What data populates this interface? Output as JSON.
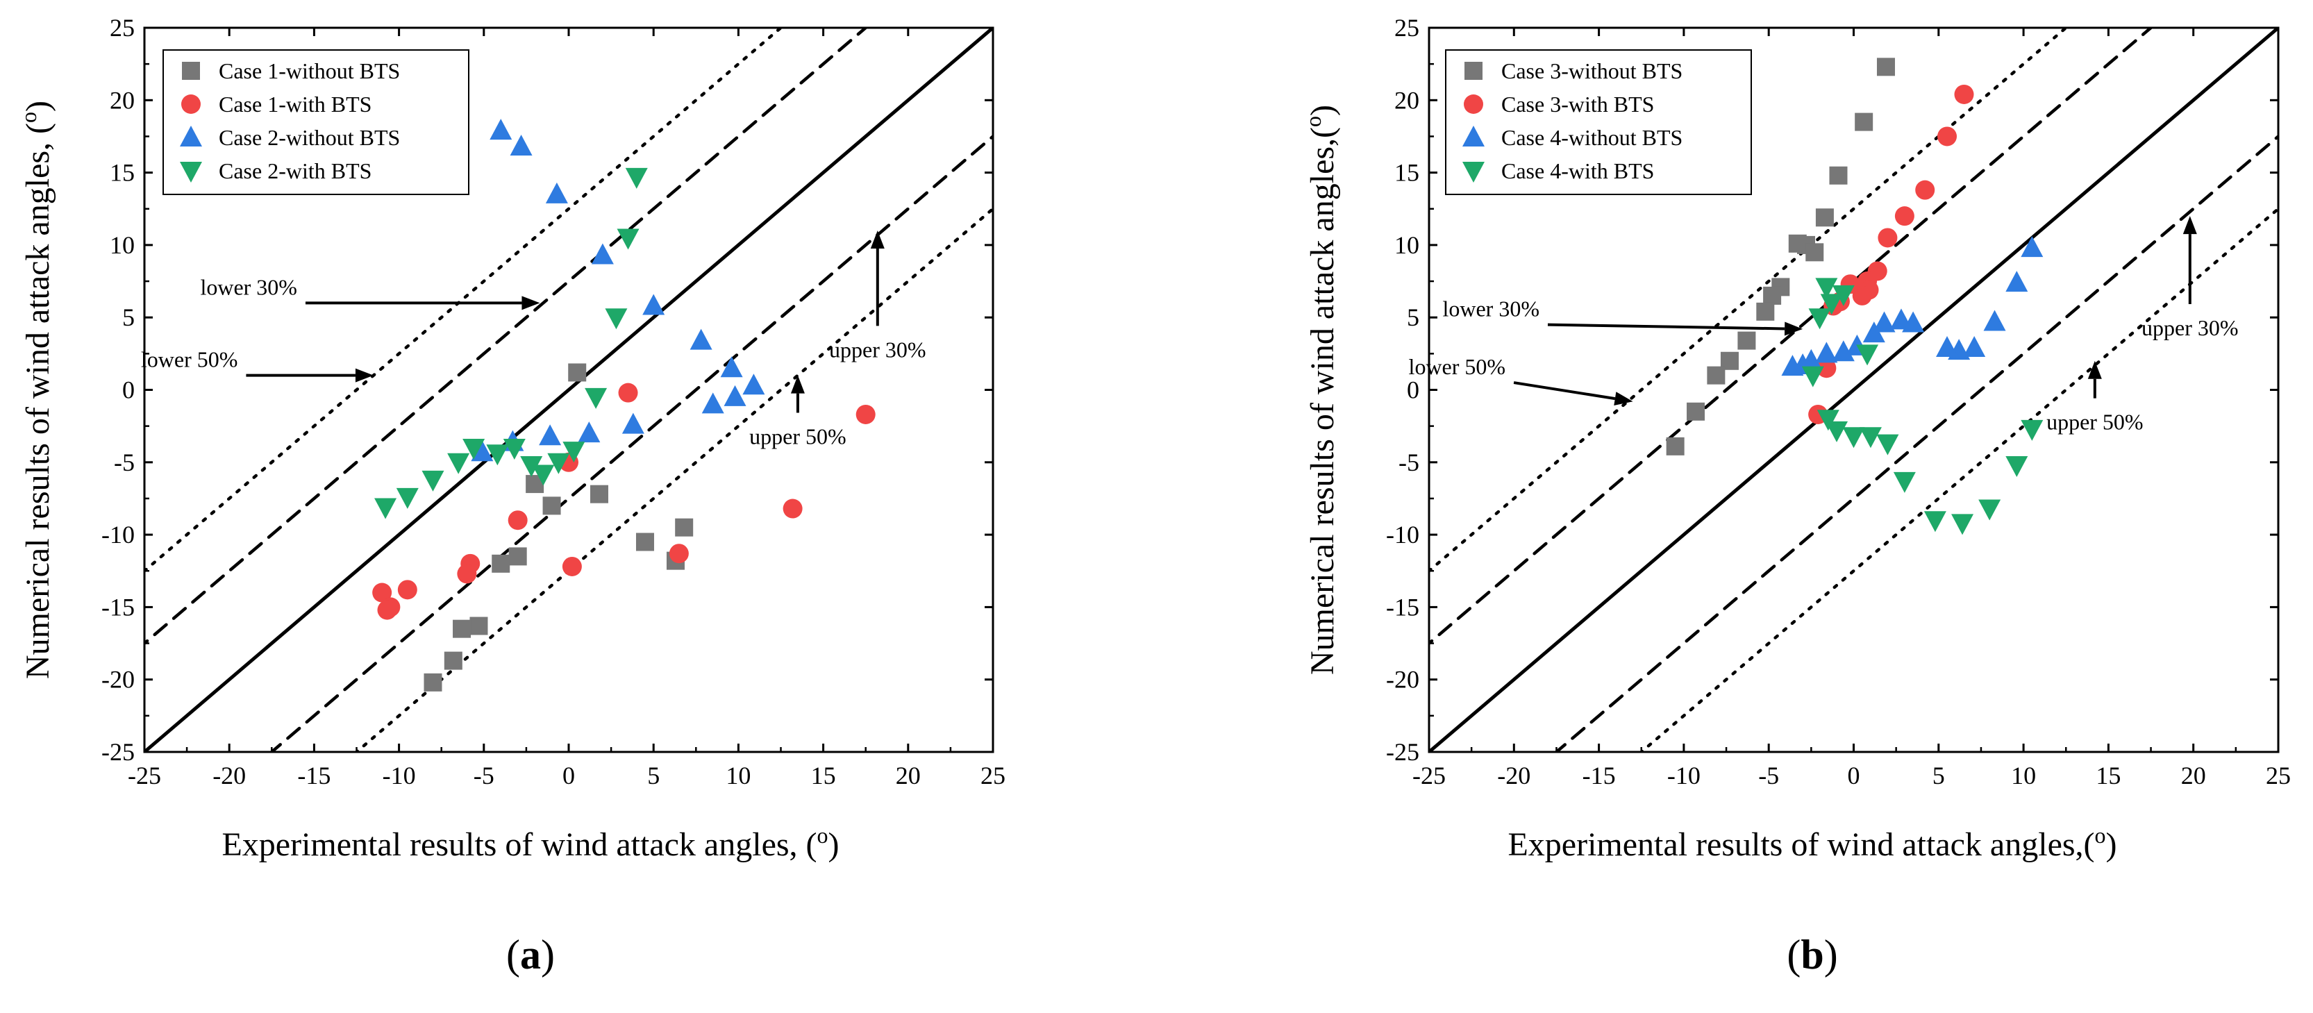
{
  "chart_data": [
    {
      "type": "scatter",
      "panel_label": "(a)",
      "xlabel": "Experimental results of wind attack angles, (o)",
      "ylabel": "Numerical results of wind attack angles, (o)",
      "xlim": [
        -25,
        25
      ],
      "ylim": [
        -25,
        25
      ],
      "xticks": [
        "-25",
        "-20",
        "-15",
        "-10",
        "-5",
        "0",
        "5",
        "10",
        "15",
        "20",
        "25"
      ],
      "yticks": [
        "-25",
        "-20",
        "-15",
        "-10",
        "-5",
        "0",
        "5",
        "10",
        "15",
        "20",
        "25"
      ],
      "grid": false,
      "legend": "top-left",
      "reference_lines": [
        "y = x",
        "lower 30%",
        "upper 30%",
        "lower 50%",
        "upper 50%"
      ],
      "annotations": [
        {
          "text": "lower 30%",
          "x": -16,
          "y": 6,
          "arrow_to": [
            -1.7,
            6
          ]
        },
        {
          "text": "lower 50%",
          "x": -19.5,
          "y": 1,
          "arrow_to": [
            -11.5,
            1
          ]
        },
        {
          "text": "upper 30%",
          "x": 18.2,
          "y": 2.5,
          "arrow_to": [
            18.2,
            11
          ]
        },
        {
          "text": "upper 50%",
          "x": 13.5,
          "y": -3.5,
          "arrow_to": [
            13.5,
            1
          ]
        }
      ],
      "series": [
        {
          "name": "Case 1-without BTS",
          "marker": "square",
          "color": "#777777",
          "points": [
            [
              0.5,
              1.2
            ],
            [
              -1,
              -8
            ],
            [
              1.8,
              -7.2
            ],
            [
              -2,
              -6.5
            ],
            [
              -3,
              -11.5
            ],
            [
              -4,
              -12
            ],
            [
              4.5,
              -10.5
            ],
            [
              6.8,
              -9.5
            ],
            [
              6.3,
              -11.8
            ],
            [
              -5.3,
              -16.3
            ],
            [
              -6.3,
              -16.5
            ],
            [
              -6.8,
              -18.7
            ],
            [
              -8,
              -20.2
            ]
          ]
        },
        {
          "name": "Case 1-with BTS",
          "marker": "circle",
          "color": "#f04545",
          "points": [
            [
              3.5,
              -0.2
            ],
            [
              17.5,
              -1.7
            ],
            [
              0,
              -5
            ],
            [
              -3,
              -9
            ],
            [
              13.2,
              -8.2
            ],
            [
              6.5,
              -11.3
            ],
            [
              0.2,
              -12.2
            ],
            [
              -5.8,
              -12
            ],
            [
              -6,
              -12.7
            ],
            [
              -9.5,
              -13.8
            ],
            [
              -11,
              -14
            ],
            [
              -10.5,
              -15
            ],
            [
              -10.7,
              -15.2
            ]
          ]
        },
        {
          "name": "Case 2-without BTS",
          "marker": "triangle-up",
          "color": "#2e7be0",
          "points": [
            [
              -4,
              17.9
            ],
            [
              -2.8,
              16.8
            ],
            [
              -0.7,
              13.5
            ],
            [
              2,
              9.3
            ],
            [
              5,
              5.8
            ],
            [
              7.8,
              3.4
            ],
            [
              9.6,
              1.5
            ],
            [
              10.9,
              0.3
            ],
            [
              9.8,
              -0.5
            ],
            [
              8.5,
              -1
            ],
            [
              3.8,
              -2.4
            ],
            [
              1.2,
              -3
            ],
            [
              -1.1,
              -3.2
            ],
            [
              -3.3,
              -3.6
            ],
            [
              -5.1,
              -4.3
            ]
          ]
        },
        {
          "name": "Case 2-with BTS",
          "marker": "triangle-down",
          "color": "#1ea868",
          "points": [
            [
              4,
              14.7
            ],
            [
              3.5,
              10.5
            ],
            [
              2.8,
              5
            ],
            [
              1.6,
              -0.5
            ],
            [
              0.3,
              -4.2
            ],
            [
              -0.6,
              -5
            ],
            [
              -1.5,
              -5.8
            ],
            [
              -2.2,
              -5.2
            ],
            [
              -3.2,
              -4
            ],
            [
              -4.2,
              -4.4
            ],
            [
              -5.6,
              -4
            ],
            [
              -6.5,
              -5
            ],
            [
              -8,
              -6.2
            ],
            [
              -9.5,
              -7.4
            ],
            [
              -10.8,
              -8.1
            ]
          ]
        }
      ]
    },
    {
      "type": "scatter",
      "panel_label": "(b)",
      "xlabel": "Experimental results of wind attack angles,(o)",
      "ylabel": "Numerical results of wind attack angles,(o)",
      "xlim": [
        -25,
        25
      ],
      "ylim": [
        -25,
        25
      ],
      "xticks": [
        "-25",
        "-20",
        "-15",
        "-10",
        "-5",
        "0",
        "5",
        "10",
        "15",
        "20",
        "25"
      ],
      "yticks": [
        "-25",
        "-20",
        "-15",
        "-10",
        "-5",
        "0",
        "5",
        "10",
        "15",
        "20",
        "25"
      ],
      "grid": false,
      "legend": "top-left",
      "reference_lines": [
        "y = x",
        "lower 30%",
        "upper 30%",
        "lower 50%",
        "upper 50%"
      ],
      "annotations": [
        {
          "text": "lower 30%",
          "x": -18.5,
          "y": 4.5,
          "arrow_to": [
            -3,
            4.2
          ]
        },
        {
          "text": "lower 50%",
          "x": -20.5,
          "y": 0.5,
          "arrow_to": [
            -13,
            -0.8
          ]
        },
        {
          "text": "upper 30%",
          "x": 19.8,
          "y": 4,
          "arrow_to": [
            19.8,
            12
          ]
        },
        {
          "text": "upper 50%",
          "x": 14.2,
          "y": -2.5,
          "arrow_to": [
            14.2,
            2
          ]
        }
      ],
      "series": [
        {
          "name": "Case 3-without BTS",
          "marker": "square",
          "color": "#777777",
          "points": [
            [
              1.9,
              22.3
            ],
            [
              0.6,
              18.5
            ],
            [
              -0.9,
              14.8
            ],
            [
              -1.7,
              11.9
            ],
            [
              -2.8,
              10
            ],
            [
              -3.3,
              10.1
            ],
            [
              -2.3,
              9.5
            ],
            [
              -4.3,
              7.1
            ],
            [
              -4.8,
              6.5
            ],
            [
              -5.2,
              5.4
            ],
            [
              -6.3,
              3.4
            ],
            [
              -7.3,
              2
            ],
            [
              -8.1,
              1
            ],
            [
              -9.3,
              -1.5
            ],
            [
              -10.5,
              -3.9
            ]
          ]
        },
        {
          "name": "Case 3-with BTS",
          "marker": "circle",
          "color": "#f04545",
          "points": [
            [
              6.5,
              20.4
            ],
            [
              5.5,
              17.5
            ],
            [
              4.2,
              13.8
            ],
            [
              3,
              12
            ],
            [
              2,
              10.5
            ],
            [
              1.4,
              8.2
            ],
            [
              0.8,
              7.5
            ],
            [
              0.9,
              6.9
            ],
            [
              0.5,
              6.5
            ],
            [
              -0.2,
              7.3
            ],
            [
              -0.8,
              6.1
            ],
            [
              -1.2,
              5.8
            ],
            [
              -1.6,
              1.5
            ],
            [
              -2.1,
              -1.7
            ]
          ]
        },
        {
          "name": "Case 4-without BTS",
          "marker": "triangle-up",
          "color": "#2e7be0",
          "points": [
            [
              10.5,
              9.8
            ],
            [
              9.6,
              7.4
            ],
            [
              8.3,
              4.7
            ],
            [
              7.1,
              2.9
            ],
            [
              6.2,
              2.7
            ],
            [
              5.5,
              2.9
            ],
            [
              3.5,
              4.6
            ],
            [
              2.8,
              4.8
            ],
            [
              1.8,
              4.6
            ],
            [
              1.2,
              3.9
            ],
            [
              0.2,
              3
            ],
            [
              -0.6,
              2.6
            ],
            [
              -1.6,
              2.5
            ],
            [
              -2.5,
              2
            ],
            [
              -3,
              1.7
            ],
            [
              -3.6,
              1.6
            ]
          ]
        },
        {
          "name": "Case 4-with BTS",
          "marker": "triangle-down",
          "color": "#1ea868",
          "points": [
            [
              -1.6,
              7.1
            ],
            [
              -1.3,
              6
            ],
            [
              -2,
              5
            ],
            [
              -0.6,
              6.6
            ],
            [
              0.8,
              2.5
            ],
            [
              -2.4,
              1
            ],
            [
              -1.5,
              -2
            ],
            [
              -1,
              -2.8
            ],
            [
              0,
              -3.2
            ],
            [
              1,
              -3.2
            ],
            [
              2,
              -3.7
            ],
            [
              3,
              -6.3
            ],
            [
              4.8,
              -9
            ],
            [
              6.4,
              -9.2
            ],
            [
              8,
              -8.2
            ],
            [
              9.6,
              -5.2
            ],
            [
              10.5,
              -2.7
            ]
          ]
        }
      ]
    }
  ]
}
